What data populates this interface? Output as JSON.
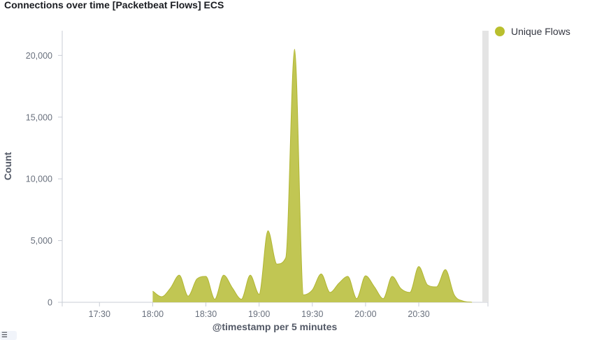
{
  "panel": {
    "title": "Connections over time [Packetbeat Flows] ECS",
    "legend_toggle_icon": "list-icon"
  },
  "legend": {
    "items": [
      {
        "label": "Unique Flows",
        "color": "#b9bf2e"
      }
    ]
  },
  "colors": {
    "series_fill": "#c1c653",
    "series_stroke": "#b1b632",
    "axis": "#c9cdd6",
    "scrollbar": "#e4e4e4"
  },
  "chart_data": {
    "type": "area",
    "xlabel": "@timestamp per 5 minutes",
    "ylabel": "Count",
    "x_tick_labels": [
      "17:30",
      "18:00",
      "18:30",
      "19:00",
      "19:30",
      "20:00",
      "20:30"
    ],
    "y_tick_labels": [
      "0",
      "5,000",
      "10,000",
      "15,000",
      "20,000"
    ],
    "xlim": [
      "17:09",
      "21:09"
    ],
    "ylim": [
      0,
      22000
    ],
    "grid": false,
    "legend_position": "right",
    "series": [
      {
        "name": "Unique Flows",
        "x": [
          "18:00",
          "18:05",
          "18:10",
          "18:15",
          "18:20",
          "18:25",
          "18:30",
          "18:35",
          "18:40",
          "18:45",
          "18:50",
          "18:55",
          "19:00",
          "19:05",
          "19:10",
          "19:15",
          "19:20",
          "19:25",
          "19:30",
          "19:35",
          "19:40",
          "19:45",
          "19:50",
          "19:55",
          "20:00",
          "20:05",
          "20:10",
          "20:15",
          "20:20",
          "20:25",
          "20:30",
          "20:35",
          "20:40",
          "20:45",
          "20:50",
          "20:55",
          "21:00"
        ],
        "y": [
          900,
          450,
          1150,
          2200,
          500,
          1900,
          2100,
          250,
          2200,
          1150,
          250,
          2200,
          650,
          5800,
          3100,
          3600,
          20500,
          600,
          1000,
          2300,
          800,
          1550,
          2100,
          300,
          2150,
          1250,
          300,
          2100,
          1100,
          800,
          2900,
          1400,
          1250,
          2650,
          600,
          100,
          0
        ]
      }
    ]
  }
}
